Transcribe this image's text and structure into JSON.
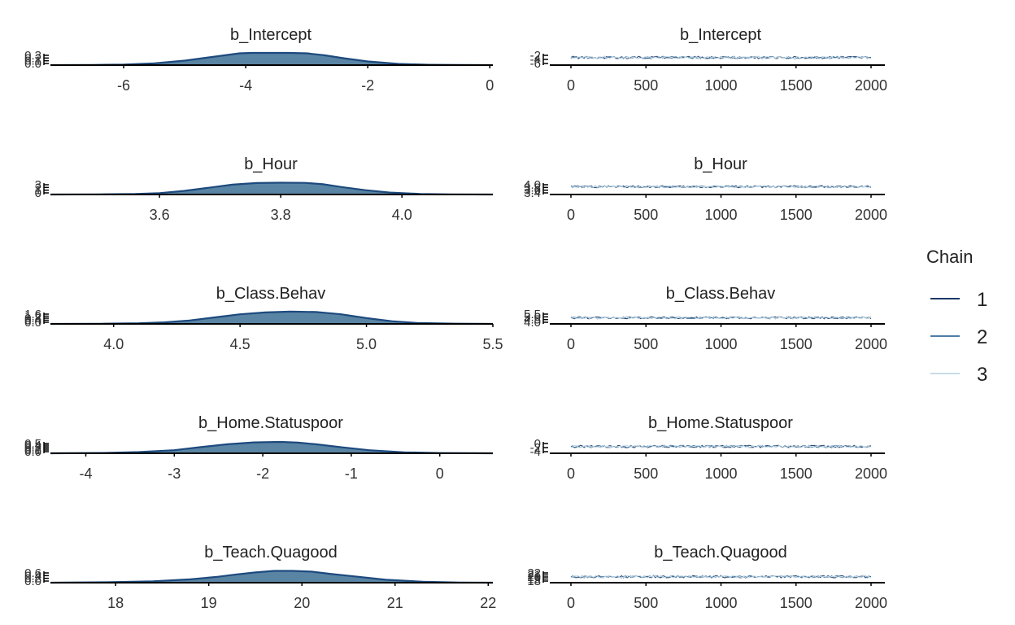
{
  "chart_data": [
    {
      "type": "area",
      "title": "b_Intercept",
      "xlim": [
        -7.2,
        0.05
      ],
      "xticks": [
        "-6",
        "-4",
        "-2",
        "0"
      ],
      "xtick_values": [
        -6,
        -4,
        -2,
        0
      ],
      "yticks": [
        "0.0",
        "0.1",
        "0.2",
        "0.3"
      ],
      "ylim": [
        0,
        0.32
      ],
      "x": [
        -7.2,
        -6.5,
        -6,
        -5.5,
        -5,
        -4.6,
        -4.3,
        -4.1,
        -3.9,
        -3.6,
        -3.3,
        -3.0,
        -2.7,
        -2.4,
        -2,
        -1.5,
        -1,
        -0.5,
        0
      ],
      "y": [
        0.0,
        0.004,
        0.015,
        0.045,
        0.11,
        0.19,
        0.25,
        0.29,
        0.3,
        0.3,
        0.3,
        0.29,
        0.24,
        0.17,
        0.09,
        0.03,
        0.008,
        0.002,
        0.0
      ]
    },
    {
      "type": "area",
      "title": "b_Hour",
      "xlim": [
        3.42,
        4.15
      ],
      "xticks": [
        "3.6",
        "3.8",
        "4.0"
      ],
      "xtick_values": [
        3.6,
        3.8,
        4.0
      ],
      "yticks": [
        "0",
        "1",
        "2",
        "3"
      ],
      "ylim": [
        0,
        3.3
      ],
      "x": [
        3.42,
        3.5,
        3.56,
        3.6,
        3.64,
        3.68,
        3.72,
        3.76,
        3.8,
        3.84,
        3.87,
        3.9,
        3.94,
        3.98,
        4.03,
        4.08,
        4.15
      ],
      "y": [
        0.0,
        0.05,
        0.15,
        0.35,
        0.9,
        1.7,
        2.5,
        2.9,
        3.0,
        2.95,
        2.6,
        1.9,
        1.1,
        0.5,
        0.15,
        0.04,
        0.0
      ]
    },
    {
      "type": "area",
      "title": "b_Class.Behav",
      "xlim": [
        3.75,
        5.5
      ],
      "xticks": [
        "4.0",
        "4.5",
        "5.0",
        "5.5"
      ],
      "xtick_values": [
        4.0,
        4.5,
        5.0,
        5.5
      ],
      "yticks": [
        "0.0",
        "0.4",
        "0.8",
        "1.2",
        "1.6"
      ],
      "ylim": [
        0,
        1.7
      ],
      "x": [
        3.75,
        3.95,
        4.1,
        4.2,
        4.3,
        4.4,
        4.5,
        4.6,
        4.7,
        4.8,
        4.9,
        5.0,
        5.1,
        5.2,
        5.35,
        5.5
      ],
      "y": [
        0.0,
        0.02,
        0.08,
        0.2,
        0.45,
        0.85,
        1.25,
        1.5,
        1.6,
        1.55,
        1.25,
        0.75,
        0.35,
        0.12,
        0.03,
        0.0
      ]
    },
    {
      "type": "area",
      "title": "b_Home.Statuspoor",
      "xlim": [
        -4.4,
        0.6
      ],
      "xticks": [
        "-4",
        "-3",
        "-2",
        "-1",
        "0"
      ],
      "xtick_values": [
        -4,
        -3,
        -2,
        -1,
        0
      ],
      "yticks": [
        "0.0",
        "0.1",
        "0.2",
        "0.3",
        "0.4",
        "0.5"
      ],
      "ylim": [
        0,
        0.55
      ],
      "x": [
        -4.4,
        -3.8,
        -3.4,
        -3.0,
        -2.7,
        -2.4,
        -2.1,
        -1.8,
        -1.6,
        -1.4,
        -1.1,
        -0.8,
        -0.4,
        0,
        0.6
      ],
      "y": [
        0.0,
        0.015,
        0.05,
        0.13,
        0.26,
        0.38,
        0.46,
        0.48,
        0.45,
        0.38,
        0.25,
        0.13,
        0.04,
        0.01,
        0.0
      ]
    },
    {
      "type": "area",
      "title": "b_Teach.Quagood",
      "xlim": [
        17.3,
        22.05
      ],
      "xticks": [
        "18",
        "19",
        "20",
        "21",
        "22"
      ],
      "xtick_values": [
        18,
        19,
        20,
        21,
        22
      ],
      "yticks": [
        "0.0",
        "0.2",
        "0.4",
        "0.6"
      ],
      "ylim": [
        0,
        0.66
      ],
      "x": [
        17.3,
        17.9,
        18.4,
        18.8,
        19.1,
        19.3,
        19.5,
        19.7,
        19.9,
        20.1,
        20.3,
        20.6,
        20.9,
        21.3,
        21.7,
        22.05
      ],
      "y": [
        0.0,
        0.02,
        0.07,
        0.17,
        0.3,
        0.42,
        0.52,
        0.6,
        0.6,
        0.56,
        0.45,
        0.3,
        0.15,
        0.05,
        0.01,
        0.0
      ]
    },
    {
      "type": "line",
      "title": "b_Intercept",
      "xlim": [
        0,
        2000
      ],
      "xticks": [
        "0",
        "500",
        "1000",
        "1500",
        "2000"
      ],
      "yticks": [
        "-6",
        "-4",
        "-2"
      ],
      "ylim": [
        -7,
        -1
      ],
      "center": -3.5,
      "spread": 0.55,
      "series": [
        {
          "name": "1"
        },
        {
          "name": "2"
        },
        {
          "name": "3"
        }
      ]
    },
    {
      "type": "line",
      "title": "b_Hour",
      "xlim": [
        0,
        2000
      ],
      "xticks": [
        "0",
        "500",
        "1000",
        "1500",
        "2000"
      ],
      "yticks": [
        "3.4",
        "3.6",
        "3.8",
        "4.0"
      ],
      "ylim": [
        3.3,
        4.1
      ],
      "center": 3.78,
      "spread": 0.065,
      "series": [
        {
          "name": "1"
        },
        {
          "name": "2"
        },
        {
          "name": "3"
        }
      ]
    },
    {
      "type": "line",
      "title": "b_Class.Behav",
      "xlim": [
        0,
        2000
      ],
      "xticks": [
        "0",
        "500",
        "1000",
        "1500",
        "2000"
      ],
      "yticks": [
        "4.0",
        "4.5",
        "5.0",
        "5.5"
      ],
      "ylim": [
        3.9,
        5.6
      ],
      "center": 4.7,
      "spread": 0.14,
      "series": [
        {
          "name": "1"
        },
        {
          "name": "2"
        },
        {
          "name": "3"
        }
      ]
    },
    {
      "type": "line",
      "title": "b_Home.Statuspoor",
      "xlim": [
        0,
        2000
      ],
      "xticks": [
        "0",
        "500",
        "1000",
        "1500",
        "2000"
      ],
      "yticks": [
        "-4",
        "-2",
        "0"
      ],
      "ylim": [
        -4.6,
        0.6
      ],
      "center": -1.9,
      "spread": 0.5,
      "series": [
        {
          "name": "1"
        },
        {
          "name": "2"
        },
        {
          "name": "3"
        }
      ]
    },
    {
      "type": "line",
      "title": "b_Teach.Quagood",
      "xlim": [
        0,
        2000
      ],
      "xticks": [
        "0",
        "500",
        "1000",
        "1500",
        "2000"
      ],
      "yticks": [
        "18",
        "19",
        "20",
        "21",
        "22"
      ],
      "ylim": [
        17.5,
        22.5
      ],
      "center": 19.8,
      "spread": 0.45,
      "series": [
        {
          "name": "1"
        },
        {
          "name": "2"
        },
        {
          "name": "3"
        }
      ]
    }
  ],
  "legend": {
    "title": "Chain",
    "items": [
      {
        "label": "1",
        "color": "#1b3a66"
      },
      {
        "label": "2",
        "color": "#4e7ea6"
      },
      {
        "label": "3",
        "color": "#c7dbe7"
      }
    ]
  },
  "colors": {
    "density_fill": "#5a84a3",
    "density_line": "#1d4a7e",
    "axis": "#000000"
  }
}
